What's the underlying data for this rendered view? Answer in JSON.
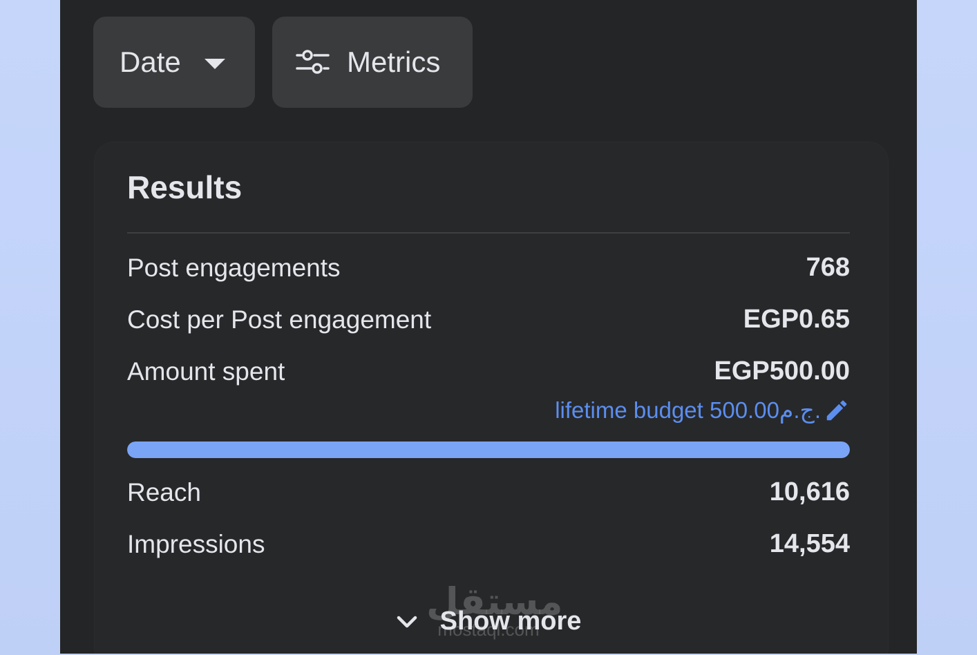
{
  "toolbar": {
    "date_label": "Date",
    "metrics_label": "Metrics"
  },
  "results": {
    "title": "Results",
    "rows": [
      {
        "label": "Post engagements",
        "value": "768"
      },
      {
        "label": "Cost per Post engagement",
        "value": "EGP0.65"
      },
      {
        "label": "Amount spent",
        "value": "EGP500.00"
      },
      {
        "label": "Reach",
        "value": "10,616"
      },
      {
        "label": "Impressions",
        "value": "14,554"
      }
    ],
    "budget_text": "lifetime budget 500.00ج.م.",
    "budget_progress_fraction": 1.0
  },
  "show_more_label": "Show more",
  "watermark": {
    "arabic": "مستقل",
    "latin": "mostaql.com"
  },
  "colors": {
    "background": "#242526",
    "button": "#3a3b3c",
    "accent": "#5b8ef0",
    "progress": "#7aa4f5"
  }
}
